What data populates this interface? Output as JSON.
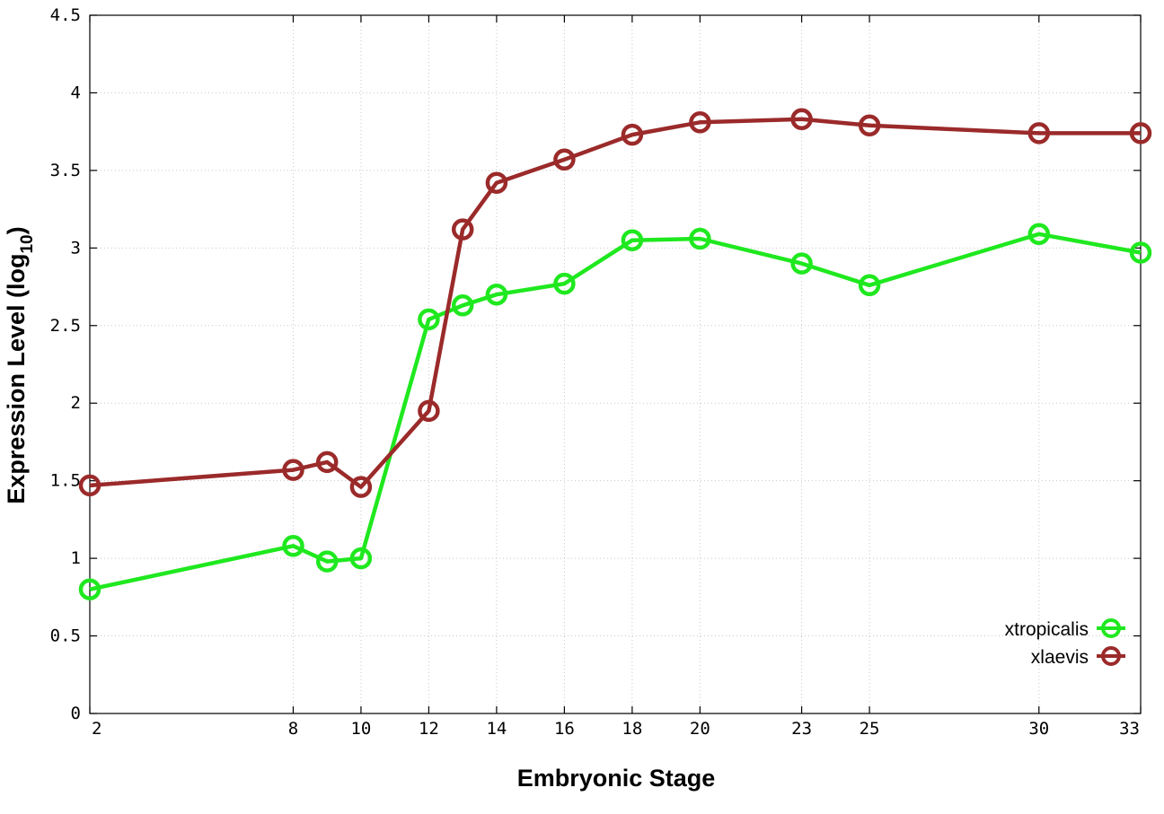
{
  "chart_data": {
    "type": "line",
    "title": "",
    "xlabel": "Embryonic Stage",
    "ylabel_main": "Expression Level (log",
    "ylabel_sub": "10",
    "ylabel_close": ")",
    "ylim": [
      0,
      4.5
    ],
    "y_ticks": [
      "0",
      "0.5",
      "1",
      "1.5",
      "2",
      "2.5",
      "3",
      "3.5",
      "4",
      "4.5"
    ],
    "categories": [
      "2",
      "8",
      "9",
      "10",
      "12",
      "13",
      "14",
      "16",
      "18",
      "20",
      "23",
      "25",
      "30",
      "33"
    ],
    "x_tick_labels": [
      "2",
      "8",
      "10",
      "12",
      "14",
      "16",
      "18",
      "20",
      "23",
      "25",
      "30",
      "33"
    ],
    "grid": true,
    "legend_position": "bottom-right",
    "series": [
      {
        "name": "xtropicalis",
        "color": "#1fe81f",
        "values": [
          0.8,
          1.08,
          0.98,
          1.0,
          2.54,
          2.63,
          2.7,
          2.77,
          3.05,
          3.06,
          2.9,
          2.76,
          3.09,
          2.97
        ]
      },
      {
        "name": "xlaevis",
        "color": "#9b2a2a",
        "values": [
          1.47,
          1.57,
          1.62,
          1.46,
          1.95,
          3.12,
          3.42,
          3.57,
          3.73,
          3.81,
          3.83,
          3.79,
          3.74,
          3.74
        ]
      }
    ]
  }
}
